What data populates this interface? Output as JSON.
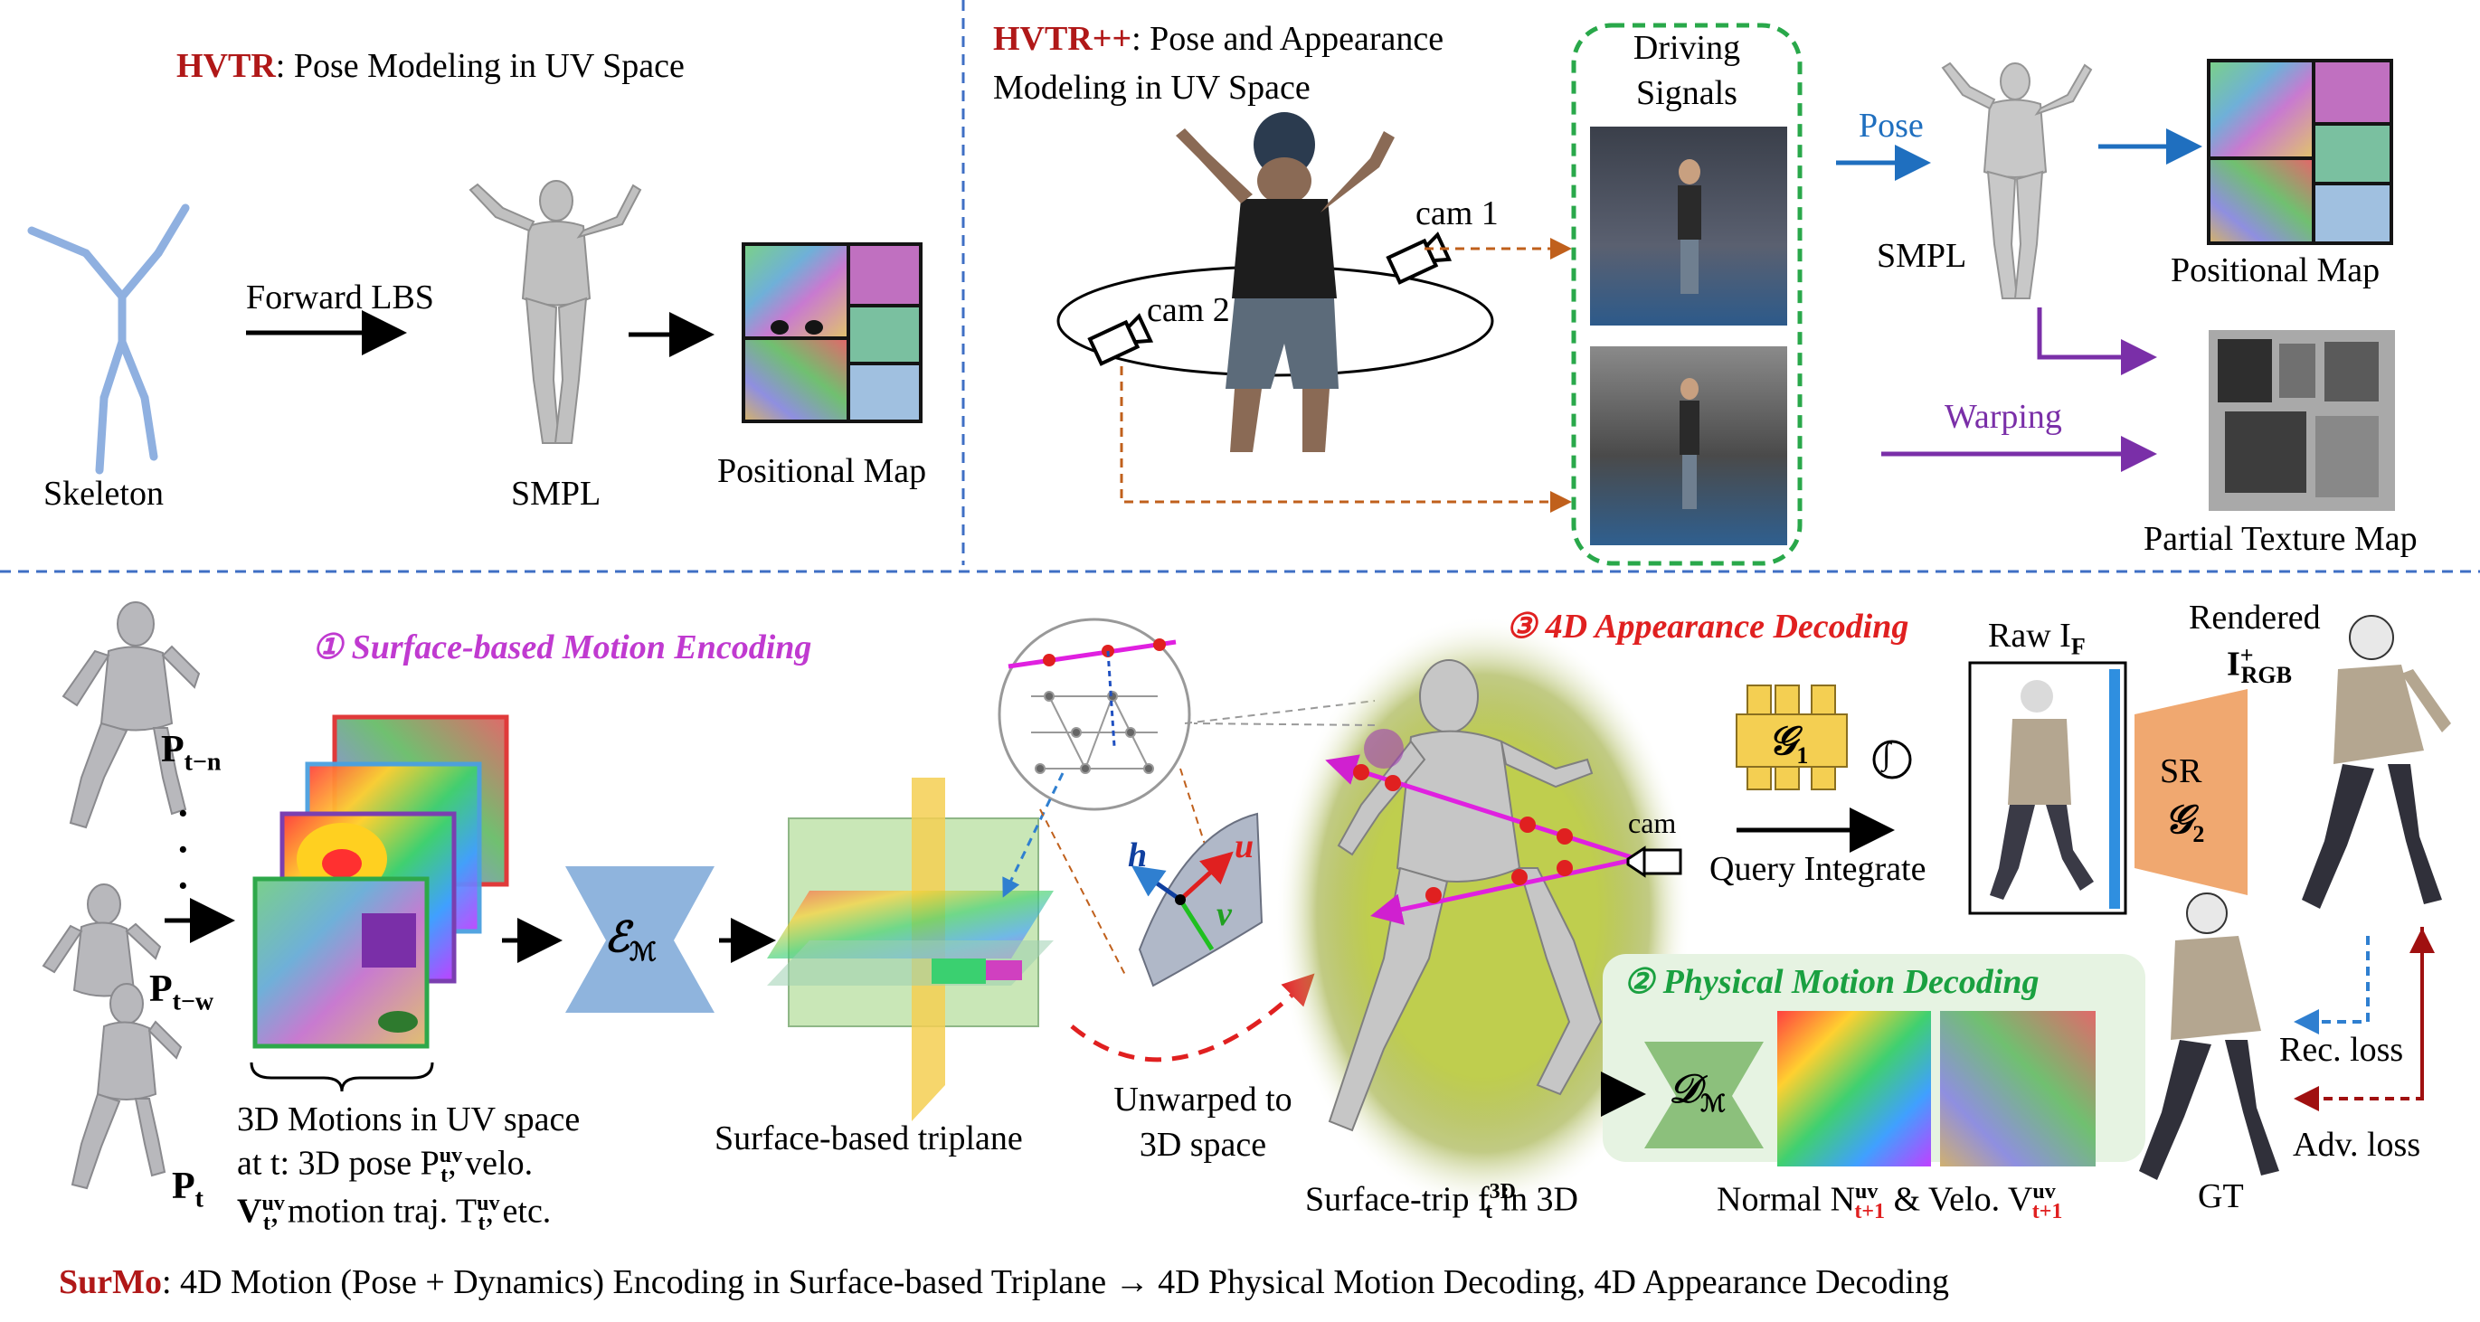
{
  "top_left": {
    "title_name": "HVTR",
    "title_rest": ": Pose Modeling in UV Space",
    "forward_lbs": "Forward LBS",
    "skeleton": "Skeleton",
    "smpl": "SMPL",
    "positional_map": "Positional Map"
  },
  "top_right": {
    "title_name": "HVTR++",
    "title_rest_1": ": Pose and Appearance",
    "title_rest_2": "Modeling in UV Space",
    "cam1": "cam 1",
    "cam2": "cam 2",
    "driving_1": "Driving",
    "driving_2": "Signals",
    "pose": "Pose",
    "smpl": "SMPL",
    "positional_map": "Positional Map",
    "warping": "Warping",
    "partial_texture_map": "Partial Texture Map"
  },
  "bottom": {
    "step1": "① Surface-based Motion Encoding",
    "step2": "② Physical Motion Decoding",
    "step3": "③ 4D Appearance Decoding",
    "p_tn": "P",
    "p_tn_sub": "t−n",
    "p_tw": "P",
    "p_tw_sub": "t−w",
    "p_t": "P",
    "p_t_sub": "t",
    "dots": "·",
    "encoder": "ℰ",
    "encoder_sub": "ℳ",
    "motion_line1": "3D Motions in UV space",
    "motion_line2": "at t: 3D pose P",
    "motion_line2_sup": "uv",
    "motion_line2_sub": "t",
    "motion_line2_rest": ", velo.",
    "motion_line3_v": "V",
    "motion_line3_v_sup": "uv",
    "motion_line3_v_sub": "t",
    "motion_line3_mid": ", motion traj. T",
    "motion_line3_t_sup": "uv",
    "motion_line3_t_sub": "t",
    "motion_line3_rest": ", etc.",
    "triplane": "Surface-based triplane",
    "unwarped_1": "Unwarped  to",
    "unwarped_2": "3D space",
    "surface_trip": "Surface-trip f",
    "surface_trip_sup": "3D",
    "surface_trip_sub": "t",
    "surface_trip_rest": " in 3D",
    "h_vec": "h",
    "u_vec": "u",
    "v_vec": "v",
    "cam": "cam",
    "g1": "𝒢",
    "g1_sub": "1",
    "integral": "∫",
    "query_integrate": "Query Integrate",
    "raw": "Raw I",
    "raw_sub": "F",
    "rendered_1": "Rendered",
    "rendered_2": "I",
    "rendered_sup": "+",
    "rendered_sub": "RGB",
    "sr": "SR",
    "g2": "𝒢",
    "g2_sub": "2",
    "decoder": "𝒟",
    "decoder_sub": "ℳ",
    "normal": "Normal N",
    "normal_sup": "uv",
    "normal_sub": "t+1",
    "velo": " & Velo. V",
    "velo_sup": "uv",
    "velo_sub": "t+1",
    "rec_loss": "Rec. loss",
    "adv_loss": "Adv. loss",
    "gt": "GT"
  },
  "caption": {
    "name": "SurMo",
    "rest": ": 4D Motion (Pose + Dynamics) Encoding in Surface-based Triplane → 4D Physical Motion Decoding, 4D Appearance Decoding"
  },
  "colors": {
    "title_red": "#b01818",
    "divider_blue": "#3f6fc4",
    "pose_arrow": "#1f6fbf",
    "warping_arrow": "#7a2fa8",
    "cam_arrow": "#c0601c",
    "driving_box": "#29a84a",
    "step_magenta": "#c03ad0",
    "step_red": "#e02020",
    "step_green": "#1aa040",
    "encoder_blue": "#8fb4dd",
    "decoder_green": "#8cc07c",
    "generator_yellow": "#f4cf52",
    "sr_orange": "#f0a870"
  }
}
